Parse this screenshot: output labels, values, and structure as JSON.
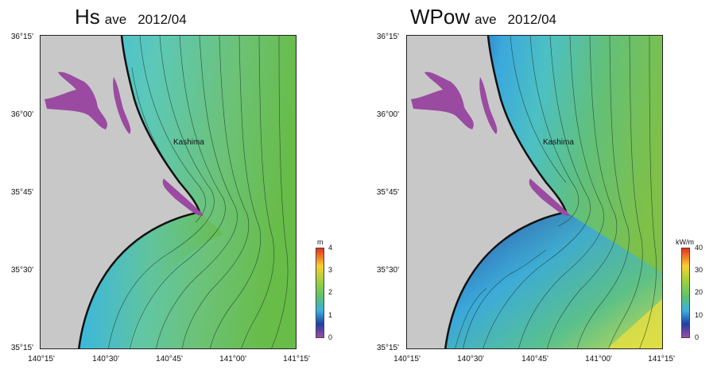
{
  "panels": [
    {
      "title_main": "Hs",
      "title_sub": "ave",
      "title_date": "2012/04",
      "place_label": "Kashima",
      "lat_labels": [
        "36°15'",
        "36°00'",
        "35°45'",
        "35°30'",
        "35°15'"
      ],
      "lon_labels": [
        "140°15'",
        "140°30'",
        "140°45'",
        "141°00'",
        "141°15'"
      ],
      "colorbar": {
        "unit": "m",
        "ticks": [
          "4",
          "3",
          "2",
          "1",
          "0"
        ],
        "min": 0,
        "max": 4
      },
      "colors": {
        "ocean_main": "#66c060",
        "ocean_near": "#3fb9d8",
        "land": "#c8c8c8",
        "lakes": "#9a4aa0"
      }
    },
    {
      "title_main": "WPow",
      "title_sub": "ave",
      "title_date": "2012/04",
      "place_label": "Kashima",
      "lat_labels": [
        "36°15'",
        "36°00'",
        "35°45'",
        "35°30'",
        "35°15'"
      ],
      "lon_labels": [
        "140°15'",
        "140°30'",
        "140°45'",
        "141°00'",
        "141°15'"
      ],
      "colorbar": {
        "unit": "kW/m",
        "ticks": [
          "40",
          "30",
          "20",
          "10",
          "0"
        ],
        "min": 0,
        "max": 40
      },
      "colors": {
        "ocean_main": "#5bbd6c",
        "ocean_near": "#2a3f9a",
        "land": "#c8c8c8",
        "lakes": "#9a4aa0"
      }
    }
  ]
}
